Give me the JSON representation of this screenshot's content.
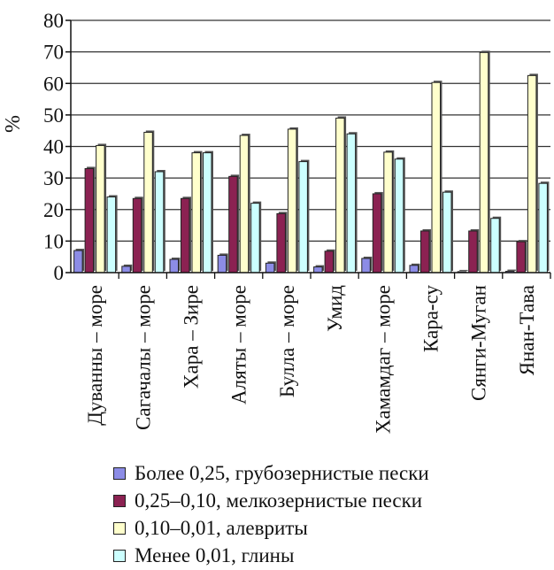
{
  "chart_data": {
    "type": "bar",
    "ylabel": "%",
    "ylim": [
      0,
      80
    ],
    "yticks": [
      "0",
      "10",
      "20",
      "30",
      "40",
      "50",
      "60",
      "70",
      "80"
    ],
    "grid": true,
    "legend_position": "bottom",
    "categories": [
      "Дуванны – море",
      "Сагачалы – море",
      "Хара – Зире",
      "Аляты – море",
      "Булла – море",
      "Умид",
      "Хамамдаг – море",
      "Кара-су",
      "Сянги-Муган",
      "Янан-Тава"
    ],
    "series": [
      {
        "name": "Более 0,25, грубозернистые пески",
        "color": "#8c8ce6",
        "values": [
          7,
          2,
          4.2,
          5.5,
          3,
          1.8,
          4.5,
          2.3,
          0.3,
          0.4
        ]
      },
      {
        "name": "0,25–0,10, мелкозернистые пески",
        "color": "#8b2252",
        "values": [
          33,
          23.5,
          23.5,
          30.5,
          18.7,
          6.8,
          25,
          13.2,
          13.2,
          9.8
        ]
      },
      {
        "name": "0,10–0,01, алевриты",
        "color": "#ffffcc",
        "values": [
          40.3,
          44.5,
          38,
          43.5,
          45.5,
          49,
          38.2,
          60.3,
          69.8,
          62.5
        ]
      },
      {
        "name": "Менее 0,01, глины",
        "color": "#ccffff",
        "values": [
          24,
          32,
          38,
          22,
          35.2,
          44,
          36,
          25.5,
          17.2,
          28.3
        ]
      }
    ]
  }
}
